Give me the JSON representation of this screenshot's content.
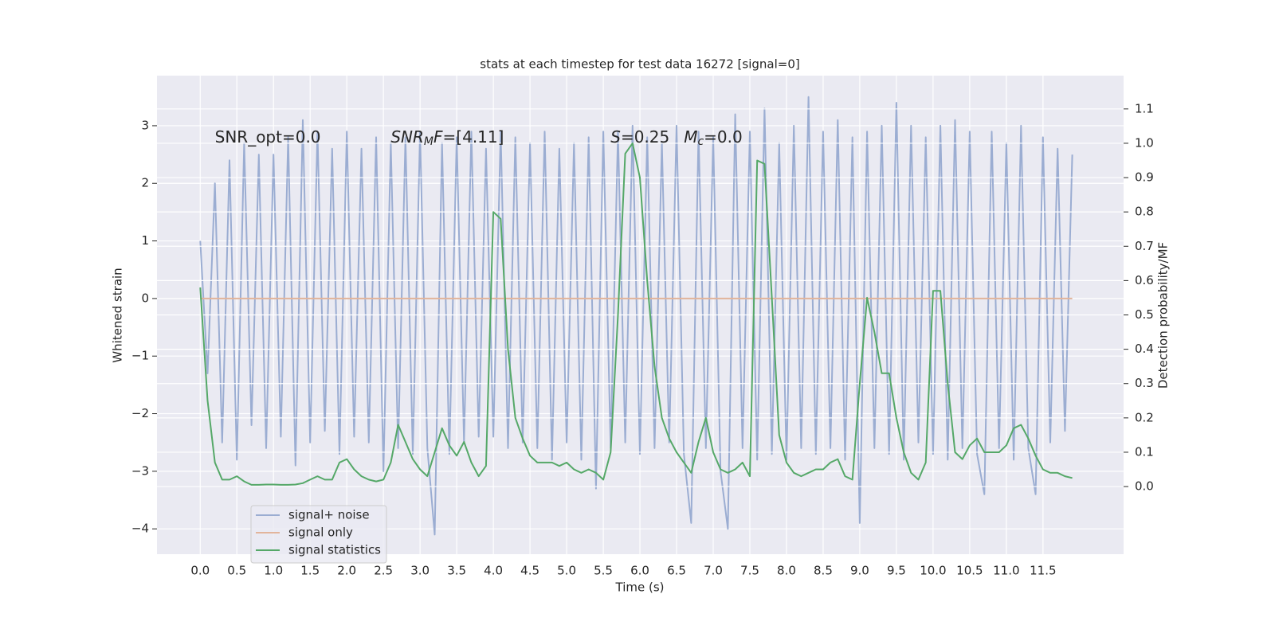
{
  "chart_data": {
    "type": "line",
    "title": "stats at each timestep for test data 16272 [signal=0]",
    "xlabel": "Time (s)",
    "ylabel": "Whitened strain",
    "y2label": "Detection probability/MF",
    "xlim": [
      -0.59,
      12.6
    ],
    "ylim": [
      -4.44,
      3.87
    ],
    "y2lim": [
      -0.197,
      1.197
    ],
    "xticks": [
      {
        "value": 0,
        "label": "0.0"
      },
      {
        "value": 0.5,
        "label": "0.5"
      },
      {
        "value": 1,
        "label": "1.0"
      },
      {
        "value": 1.5,
        "label": "1.5"
      },
      {
        "value": 2,
        "label": "2.0"
      },
      {
        "value": 2.5,
        "label": "2.5"
      },
      {
        "value": 3,
        "label": "3.0"
      },
      {
        "value": 3.5,
        "label": "3.5"
      },
      {
        "value": 4,
        "label": "4.0"
      },
      {
        "value": 4.5,
        "label": "4.5"
      },
      {
        "value": 5,
        "label": "5.0"
      },
      {
        "value": 5.5,
        "label": "5.5"
      },
      {
        "value": 6,
        "label": "6.0"
      },
      {
        "value": 6.5,
        "label": "6.5"
      },
      {
        "value": 7,
        "label": "7.0"
      },
      {
        "value": 7.5,
        "label": "7.5"
      },
      {
        "value": 8,
        "label": "8.0"
      },
      {
        "value": 8.5,
        "label": "8.5"
      },
      {
        "value": 9,
        "label": "9.0"
      },
      {
        "value": 9.5,
        "label": "9.5"
      },
      {
        "value": 10,
        "label": "10.0"
      },
      {
        "value": 10.5,
        "label": "10.5"
      },
      {
        "value": 11,
        "label": "11.0"
      },
      {
        "value": 11.5,
        "label": "11.5"
      }
    ],
    "yticks": [
      {
        "value": -4,
        "label": "−4"
      },
      {
        "value": -3,
        "label": "−3"
      },
      {
        "value": -2,
        "label": "−2"
      },
      {
        "value": -1,
        "label": "−1"
      },
      0,
      1,
      2,
      3
    ],
    "y2ticks": [
      {
        "value": 0,
        "label": "0.0"
      },
      {
        "value": 0.1,
        "label": "0.1"
      },
      {
        "value": 0.2,
        "label": "0.2"
      },
      {
        "value": 0.3,
        "label": "0.3"
      },
      {
        "value": 0.4,
        "label": "0.4"
      },
      {
        "value": 0.5,
        "label": "0.5"
      },
      {
        "value": 0.6,
        "label": "0.6"
      },
      {
        "value": 0.7,
        "label": "0.7"
      },
      {
        "value": 0.8,
        "label": "0.8"
      },
      {
        "value": 0.9,
        "label": "0.9"
      },
      {
        "value": 1,
        "label": "1.0"
      },
      {
        "value": 1.1,
        "label": "1.1"
      }
    ],
    "grid": true,
    "legend": "lower left",
    "x": [
      0,
      0.1,
      0.2,
      0.3,
      0.4,
      0.5,
      0.6,
      0.7,
      0.8,
      0.9,
      1,
      1.1,
      1.2,
      1.3,
      1.4,
      1.5,
      1.6,
      1.7,
      1.8,
      1.9,
      2,
      2.1,
      2.2,
      2.3,
      2.4,
      2.5,
      2.6,
      2.7,
      2.8,
      2.9,
      3,
      3.1,
      3.2,
      3.3,
      3.4,
      3.5,
      3.6,
      3.7,
      3.8,
      3.9,
      4,
      4.1,
      4.2,
      4.3,
      4.4,
      4.5,
      4.6,
      4.7,
      4.8,
      4.9,
      5,
      5.1,
      5.2,
      5.3,
      5.4,
      5.5,
      5.6,
      5.7,
      5.8,
      5.9,
      6,
      6.1,
      6.2,
      6.3,
      6.4,
      6.5,
      6.6,
      6.7,
      6.8,
      6.9,
      7,
      7.1,
      7.2,
      7.3,
      7.4,
      7.5,
      7.6,
      7.7,
      7.8,
      7.9,
      8,
      8.1,
      8.2,
      8.3,
      8.4,
      8.5,
      8.6,
      8.7,
      8.8,
      8.9,
      9,
      9.1,
      9.2,
      9.3,
      9.4,
      9.5,
      9.6,
      9.7,
      9.8,
      9.9,
      10,
      10.1,
      10.2,
      10.3,
      10.4,
      10.5,
      10.6,
      10.7,
      10.8,
      10.9,
      11,
      11.1,
      11.2,
      11.3,
      11.4,
      11.5,
      11.6,
      11.7,
      11.8,
      11.9
    ],
    "series": [
      {
        "name": "signal+ noise",
        "color": "#9badd2",
        "values": [
          1.0,
          -1.3,
          2.0,
          -2.5,
          2.4,
          -2.8,
          2.7,
          -2.2,
          2.5,
          -2.6,
          2.5,
          -2.4,
          2.8,
          -2.9,
          3.1,
          -2.5,
          2.9,
          -2.3,
          2.6,
          -2.7,
          2.9,
          -2.4,
          2.6,
          -2.5,
          2.8,
          -3.0,
          2.7,
          -2.6,
          2.8,
          -2.7,
          2.9,
          -2.6,
          -4.1,
          2.7,
          -2.7,
          2.8,
          -2.5,
          2.9,
          -2.4,
          2.6,
          -2.4,
          2.9,
          -2.6,
          2.8,
          -2.5,
          2.7,
          -2.6,
          2.9,
          -2.8,
          2.6,
          -2.5,
          2.7,
          -2.8,
          2.8,
          -3.3,
          2.9,
          -2.6,
          2.9,
          -2.5,
          3.0,
          -2.7,
          2.8,
          -2.6,
          2.7,
          -2.5,
          3.0,
          -2.7,
          -3.9,
          2.9,
          -2.6,
          2.8,
          -3.0,
          -4.0,
          3.2,
          -2.6,
          2.9,
          -2.8,
          3.3,
          -2.7,
          2.7,
          -2.8,
          3.0,
          -2.6,
          3.5,
          -2.7,
          2.9,
          -2.6,
          3.1,
          -2.8,
          2.8,
          -3.9,
          2.9,
          -2.6,
          3.0,
          -2.7,
          3.4,
          -2.8,
          3.0,
          -2.5,
          2.8,
          -2.7,
          3.0,
          -2.8,
          3.1,
          -2.6,
          2.9,
          -2.7,
          -3.4,
          2.9,
          -2.6,
          2.7,
          -2.8,
          3.0,
          -2.6,
          -3.4,
          2.8,
          -2.5,
          2.6,
          -2.3,
          2.5
        ]
      },
      {
        "name": "signal only",
        "color": "#e2b49b",
        "values": [
          0,
          0,
          0,
          0,
          0,
          0,
          0,
          0,
          0,
          0,
          0,
          0,
          0,
          0,
          0,
          0,
          0,
          0,
          0,
          0,
          0,
          0,
          0,
          0,
          0,
          0,
          0,
          0,
          0,
          0,
          0,
          0,
          0,
          0,
          0,
          0,
          0,
          0,
          0,
          0,
          0,
          0,
          0,
          0,
          0,
          0,
          0,
          0,
          0,
          0,
          0,
          0,
          0,
          0,
          0,
          0,
          0,
          0,
          0,
          0,
          0,
          0,
          0,
          0,
          0,
          0,
          0,
          0,
          0,
          0,
          0,
          0,
          0,
          0,
          0,
          0,
          0,
          0,
          0,
          0,
          0,
          0,
          0,
          0,
          0,
          0,
          0,
          0,
          0,
          0,
          0,
          0,
          0,
          0,
          0,
          0,
          0,
          0,
          0,
          0,
          0,
          0,
          0,
          0,
          0,
          0,
          0,
          0,
          0,
          0,
          0,
          0,
          0,
          0,
          0,
          0,
          0,
          0,
          0,
          0
        ]
      },
      {
        "name": "signal statistics",
        "color": "#55a868",
        "axis": "y2",
        "values": [
          0.58,
          0.25,
          0.07,
          0.02,
          0.02,
          0.03,
          0.015,
          0.005,
          0.005,
          0.006,
          0.006,
          0.005,
          0.005,
          0.006,
          0.01,
          0.02,
          0.03,
          0.02,
          0.02,
          0.07,
          0.08,
          0.05,
          0.03,
          0.02,
          0.015,
          0.02,
          0.07,
          0.18,
          0.13,
          0.08,
          0.05,
          0.03,
          0.1,
          0.17,
          0.12,
          0.09,
          0.13,
          0.07,
          0.03,
          0.06,
          0.8,
          0.78,
          0.4,
          0.2,
          0.14,
          0.09,
          0.07,
          0.07,
          0.07,
          0.06,
          0.07,
          0.05,
          0.04,
          0.05,
          0.04,
          0.02,
          0.1,
          0.5,
          0.97,
          1.0,
          0.9,
          0.6,
          0.35,
          0.2,
          0.14,
          0.1,
          0.07,
          0.04,
          0.13,
          0.2,
          0.1,
          0.05,
          0.04,
          0.05,
          0.07,
          0.03,
          0.95,
          0.94,
          0.55,
          0.15,
          0.07,
          0.04,
          0.03,
          0.04,
          0.05,
          0.05,
          0.07,
          0.08,
          0.03,
          0.02,
          0.3,
          0.55,
          0.45,
          0.33,
          0.33,
          0.2,
          0.1,
          0.04,
          0.02,
          0.07,
          0.57,
          0.57,
          0.3,
          0.1,
          0.08,
          0.12,
          0.14,
          0.1,
          0.1,
          0.1,
          0.12,
          0.17,
          0.18,
          0.14,
          0.09,
          0.05,
          0.04,
          0.04,
          0.03,
          0.025
        ]
      }
    ],
    "annotations": [
      {
        "x": 0.2,
        "y": 2.79,
        "parts": [
          {
            "text": "SNR_opt=0.0"
          }
        ]
      },
      {
        "x": 2.6,
        "y": 2.79,
        "parts": [
          {
            "text": "SNR",
            "italic": true
          },
          {
            "text": "M",
            "italic": true,
            "sub": true
          },
          {
            "text": "F",
            "italic": true
          },
          {
            "text": "=[4.11]"
          }
        ]
      },
      {
        "x": 5.6,
        "y": 2.79,
        "parts": [
          {
            "text": "S",
            "italic": true
          },
          {
            "text": "=0.25"
          }
        ]
      },
      {
        "x": 6.6,
        "y": 2.79,
        "parts": [
          {
            "text": "M",
            "italic": true
          },
          {
            "text": "c",
            "italic": true,
            "sub": true
          },
          {
            "text": "=0.0"
          }
        ]
      }
    ]
  }
}
